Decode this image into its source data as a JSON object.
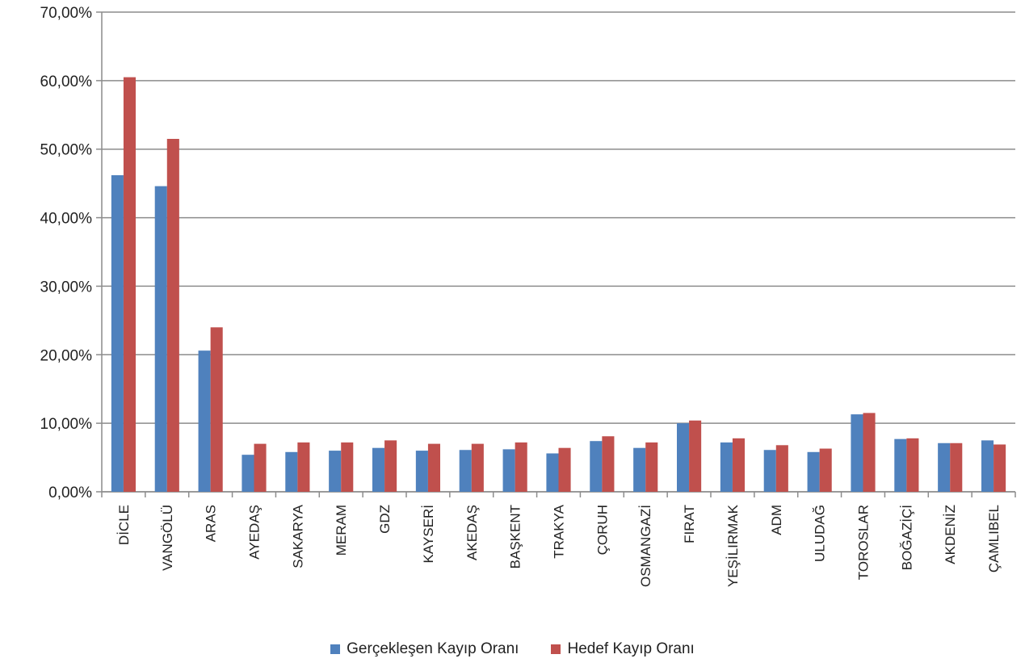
{
  "chart_data": {
    "type": "bar",
    "categories": [
      "DİCLE",
      "VANGÖLÜ",
      "ARAS",
      "AYEDAŞ",
      "SAKARYA",
      "MERAM",
      "GDZ",
      "KAYSERİ",
      "AKEDAŞ",
      "BAŞKENT",
      "TRAKYA",
      "ÇORUH",
      "OSMANGAZİ",
      "FIRAT",
      "YEŞİLIRMAK",
      "ADM",
      "ULUDAĞ",
      "TOROSLAR",
      "BOĞAZİÇİ",
      "AKDENİZ",
      "ÇAMLIBEL"
    ],
    "series": [
      {
        "name": "Gerçekleşen Kayıp Oranı",
        "color": "#4f81bd",
        "values": [
          46.2,
          44.6,
          20.6,
          5.4,
          5.8,
          6.0,
          6.4,
          6.0,
          6.1,
          6.2,
          5.6,
          7.4,
          6.4,
          10.0,
          7.2,
          6.1,
          5.8,
          11.3,
          7.7,
          7.1,
          7.5
        ]
      },
      {
        "name": "Hedef Kayıp Oranı",
        "color": "#c0504d",
        "values": [
          60.5,
          51.5,
          24.0,
          7.0,
          7.2,
          7.2,
          7.5,
          7.0,
          7.0,
          7.2,
          6.4,
          8.1,
          7.2,
          10.4,
          7.8,
          6.8,
          6.3,
          11.5,
          7.8,
          7.1,
          6.9
        ]
      }
    ],
    "yticks": [
      "0,00%",
      "10,00%",
      "20,00%",
      "30,00%",
      "40,00%",
      "50,00%",
      "60,00%",
      "70,00%"
    ],
    "ylim": [
      0,
      70
    ],
    "grid": true,
    "legend_position": "bottom"
  }
}
